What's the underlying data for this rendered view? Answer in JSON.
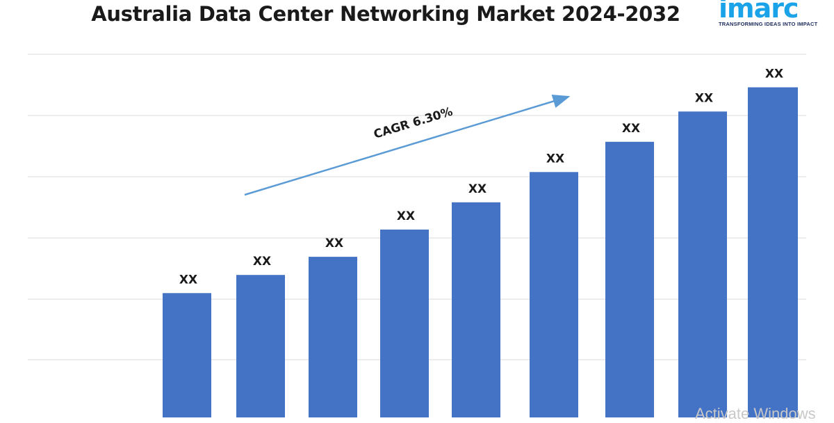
{
  "title": "Australia Data Center Networking Market 2024-2032",
  "logo": {
    "word": "imarc",
    "tagline": "TRANSFORMING IDEAS INTO IMPACT"
  },
  "watermark": "Activate Windows",
  "colors": {
    "bar": "#4472c4",
    "gridline": "#d9d9d9",
    "arrow": "#5b9bd5",
    "logo": "#1aa3e8"
  },
  "chart_data": {
    "type": "bar",
    "title": "Australia Data Center Networking Market 2024-2032",
    "categories": [
      "",
      "",
      "",
      "",
      "",
      "",
      "",
      "",
      ""
    ],
    "values": [
      21,
      24,
      27,
      31.5,
      36,
      41,
      46,
      51,
      55
    ],
    "data_labels": [
      "XX",
      "XX",
      "XX",
      "XX",
      "XX",
      "XX",
      "XX",
      "XX",
      "XX"
    ],
    "ylim": [
      0,
      60
    ],
    "grid": true,
    "annotation": {
      "text": "CAGR 6.30%",
      "type": "arrow"
    },
    "xlabel": "",
    "ylabel": ""
  }
}
